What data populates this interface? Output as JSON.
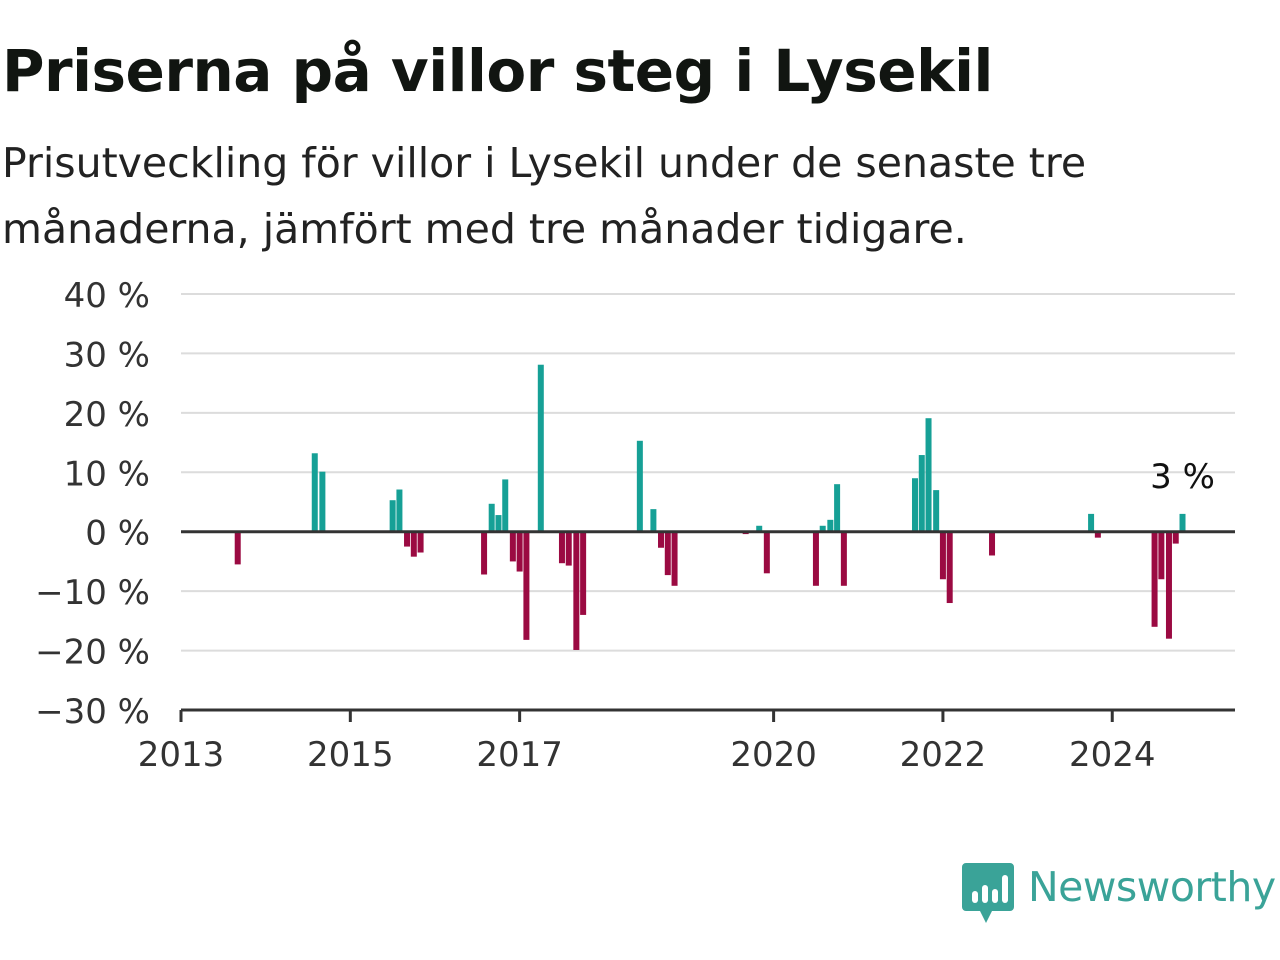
{
  "header": {
    "title": "Priserna på villor steg i Lysekil",
    "subtitle": "Prisutveckling för villor i Lysekil under de senaste tre månaderna, jämfört med tre månader tidigare."
  },
  "logo": {
    "text": "Newsworthy",
    "icon": "bar-chart-bubble-icon",
    "color": "#3aa398"
  },
  "chart_data": {
    "type": "bar",
    "ylim": [
      -30,
      40
    ],
    "y_ticks": [
      40,
      30,
      20,
      10,
      0,
      -10,
      -20,
      -30
    ],
    "y_tick_labels": [
      "40 %",
      "30 %",
      "20 %",
      "10 %",
      "0 %",
      "−10 %",
      "−20 %",
      "−30 %"
    ],
    "x_ticks": [
      2013,
      2015,
      2017,
      2020,
      2022,
      2024
    ],
    "xlim": [
      2013.0,
      2025.45
    ],
    "grid": true,
    "colors": {
      "positive": "#16a096",
      "negative": "#9b0a42"
    },
    "annotation": {
      "text": "3 %",
      "x": 2024.83,
      "y": 3
    },
    "series": [
      {
        "values": [
          {
            "x": 2013.67,
            "y": -5.5
          },
          {
            "x": 2014.58,
            "y": 13.2
          },
          {
            "x": 2014.67,
            "y": 10.1
          },
          {
            "x": 2015.5,
            "y": 5.3
          },
          {
            "x": 2015.58,
            "y": 7.1
          },
          {
            "x": 2015.67,
            "y": -2.5
          },
          {
            "x": 2015.75,
            "y": -4.2
          },
          {
            "x": 2015.83,
            "y": -3.5
          },
          {
            "x": 2016.58,
            "y": -7.2
          },
          {
            "x": 2016.67,
            "y": 4.7
          },
          {
            "x": 2016.75,
            "y": 2.8
          },
          {
            "x": 2016.83,
            "y": 8.8
          },
          {
            "x": 2016.92,
            "y": -5.0
          },
          {
            "x": 2017.0,
            "y": -6.7
          },
          {
            "x": 2017.08,
            "y": -18.2
          },
          {
            "x": 2017.25,
            "y": 28.1
          },
          {
            "x": 2017.5,
            "y": -5.3
          },
          {
            "x": 2017.58,
            "y": -5.7
          },
          {
            "x": 2017.67,
            "y": -19.9
          },
          {
            "x": 2017.75,
            "y": -14.0
          },
          {
            "x": 2018.42,
            "y": 15.3
          },
          {
            "x": 2018.58,
            "y": 3.8
          },
          {
            "x": 2018.67,
            "y": -2.7
          },
          {
            "x": 2018.75,
            "y": -7.3
          },
          {
            "x": 2018.83,
            "y": -9.1
          },
          {
            "x": 2019.67,
            "y": -0.4
          },
          {
            "x": 2019.83,
            "y": 1.0
          },
          {
            "x": 2019.92,
            "y": -7.0
          },
          {
            "x": 2020.5,
            "y": -9.1
          },
          {
            "x": 2020.58,
            "y": 1.0
          },
          {
            "x": 2020.67,
            "y": 2.0
          },
          {
            "x": 2020.75,
            "y": 8.0
          },
          {
            "x": 2020.83,
            "y": -9.1
          },
          {
            "x": 2021.67,
            "y": 9.0
          },
          {
            "x": 2021.75,
            "y": 12.9
          },
          {
            "x": 2021.83,
            "y": 19.1
          },
          {
            "x": 2021.92,
            "y": 7.0
          },
          {
            "x": 2022.0,
            "y": -8.0
          },
          {
            "x": 2022.08,
            "y": -12.0
          },
          {
            "x": 2022.58,
            "y": -4.0
          },
          {
            "x": 2023.75,
            "y": 3.0
          },
          {
            "x": 2023.83,
            "y": -1.0
          },
          {
            "x": 2024.5,
            "y": -16.0
          },
          {
            "x": 2024.58,
            "y": -8.0
          },
          {
            "x": 2024.67,
            "y": -18.0
          },
          {
            "x": 2024.75,
            "y": -2.0
          },
          {
            "x": 2024.83,
            "y": 3.0
          }
        ]
      }
    ]
  }
}
